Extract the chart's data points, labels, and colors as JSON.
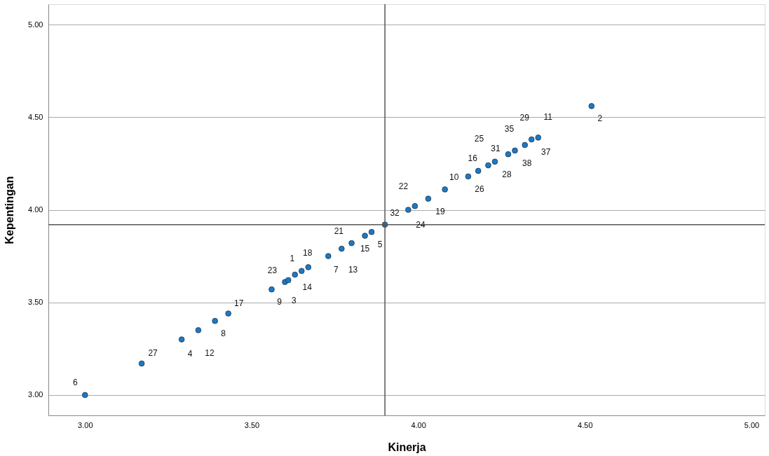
{
  "chart_data": {
    "type": "scatter",
    "xlabel": "Kinerja",
    "ylabel": "Kepentingan",
    "x": [
      3.0,
      3.17,
      3.29,
      3.34,
      3.39,
      3.43,
      3.56,
      3.6,
      3.61,
      3.63,
      3.65,
      3.67,
      3.73,
      3.77,
      3.8,
      3.84,
      3.86,
      3.9,
      3.97,
      3.99,
      4.03,
      4.08,
      4.15,
      4.18,
      4.21,
      4.23,
      4.27,
      4.29,
      4.32,
      4.34,
      4.36,
      4.52
    ],
    "series": [
      {
        "color": "#1f78c1",
        "values": [
          3.0,
          3.17,
          3.3,
          3.35,
          3.4,
          3.44,
          3.57,
          3.61,
          3.62,
          3.65,
          3.67,
          3.69,
          3.75,
          3.79,
          3.82,
          3.86,
          3.88,
          3.92,
          4.0,
          4.02,
          4.06,
          4.11,
          4.18,
          4.21,
          4.24,
          4.26,
          4.3,
          4.32,
          4.35,
          4.38,
          4.39,
          4.56
        ]
      }
    ],
    "annotations": [
      {
        "text": "6",
        "x": 3.0,
        "y": 3.0
      },
      {
        "text": "27",
        "x": 3.17,
        "y": 3.17
      },
      {
        "text": "4",
        "x": 3.29,
        "y": 3.3
      },
      {
        "text": "12",
        "x": 3.34,
        "y": 3.35
      },
      {
        "text": "8",
        "x": 3.39,
        "y": 3.4
      },
      {
        "text": "17",
        "x": 3.43,
        "y": 3.44
      },
      {
        "text": "9",
        "x": 3.56,
        "y": 3.57
      },
      {
        "text": "23",
        "x": 3.6,
        "y": 3.61
      },
      {
        "text": "3",
        "x": 3.61,
        "y": 3.62
      },
      {
        "text": "1",
        "x": 3.63,
        "y": 3.65
      },
      {
        "text": "14",
        "x": 3.65,
        "y": 3.67
      },
      {
        "text": "18",
        "x": 3.67,
        "y": 3.69
      },
      {
        "text": "7",
        "x": 3.73,
        "y": 3.75
      },
      {
        "text": "21",
        "x": 3.77,
        "y": 3.79
      },
      {
        "text": "13",
        "x": 3.8,
        "y": 3.82
      },
      {
        "text": "15",
        "x": 3.84,
        "y": 3.86
      },
      {
        "text": "5",
        "x": 3.86,
        "y": 3.88
      },
      {
        "text": "32",
        "x": 3.9,
        "y": 3.92
      },
      {
        "text": "22",
        "x": 3.97,
        "y": 4.0
      },
      {
        "text": "24",
        "x": 3.99,
        "y": 4.02
      },
      {
        "text": "19",
        "x": 4.03,
        "y": 4.06
      },
      {
        "text": "10",
        "x": 4.08,
        "y": 4.11
      },
      {
        "text": "26",
        "x": 4.15,
        "y": 4.18
      },
      {
        "text": "16",
        "x": 4.18,
        "y": 4.21
      },
      {
        "text": "25",
        "x": 4.21,
        "y": 4.24
      },
      {
        "text": "28",
        "x": 4.23,
        "y": 4.26
      },
      {
        "text": "31",
        "x": 4.27,
        "y": 4.3
      },
      {
        "text": "35",
        "x": 4.29,
        "y": 4.32
      },
      {
        "text": "29",
        "x": 4.34,
        "y": 4.38
      },
      {
        "text": "38",
        "x": 4.32,
        "y": 4.35
      },
      {
        "text": "37",
        "x": 4.36,
        "y": 4.39
      },
      {
        "text": "11",
        "x": 4.36,
        "y": 4.39
      },
      {
        "text": "2",
        "x": 4.52,
        "y": 4.56
      }
    ],
    "ref_lines": [
      {
        "axis": "x",
        "value": 3.9,
        "color": "#555555"
      },
      {
        "axis": "y",
        "value": 3.92,
        "color": "#555555"
      }
    ],
    "xlim": [
      2.89,
      5.04
    ],
    "ylim": [
      2.89,
      5.11
    ],
    "xticks": [
      {
        "value": 3,
        "label": "3.00"
      },
      {
        "value": 3.5,
        "label": "3.50"
      },
      {
        "value": 4,
        "label": "4.00"
      },
      {
        "value": 4.5,
        "label": "4.50"
      },
      {
        "value": 5,
        "label": "5.00"
      }
    ],
    "yticks": [
      {
        "value": 3,
        "label": "3.00"
      },
      {
        "value": 3.5,
        "label": "3.50"
      },
      {
        "value": 4,
        "label": "4.00"
      },
      {
        "value": 4.5,
        "label": "4.50"
      },
      {
        "value": 5,
        "label": "5.00"
      }
    ],
    "grid": "y",
    "marker": "circle"
  }
}
